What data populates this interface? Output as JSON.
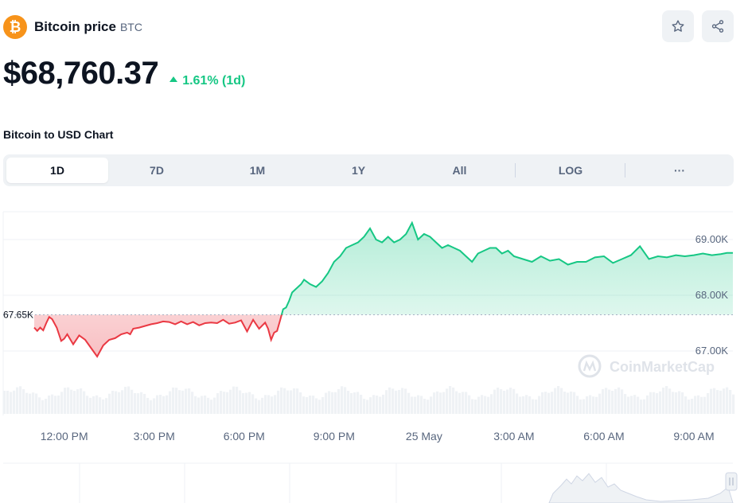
{
  "header": {
    "coin_name": "Bitcoin price",
    "coin_symbol": "BTC",
    "logo_glyph": "₿",
    "watchlist_icon": "star-icon",
    "share_icon": "share-icon"
  },
  "price": {
    "value": "$68,760.37",
    "change": "1.61% (1d)",
    "change_direction": "up"
  },
  "section_title": "Bitcoin to USD Chart",
  "tabs": [
    {
      "label": "1D",
      "active": true
    },
    {
      "label": "7D",
      "active": false
    },
    {
      "label": "1M",
      "active": false
    },
    {
      "label": "1Y",
      "active": false
    },
    {
      "label": "All",
      "active": false
    },
    {
      "label": "LOG",
      "active": false
    },
    {
      "label": "···",
      "active": false
    }
  ],
  "watermark": "CoinMarketCap",
  "colors": {
    "up": "#16c784",
    "down": "#ea3943",
    "brand": "#f7931a",
    "text": "#0d1421",
    "muted": "#58667e"
  },
  "chart_data": {
    "type": "line",
    "baseline": 67650,
    "baseline_label": "67.65K",
    "ylim": [
      66500,
      69500
    ],
    "yticks": [
      69000,
      68000,
      67000
    ],
    "ytick_labels": [
      "69.00K",
      "68.00K",
      "67.00K"
    ],
    "xticks": [
      1,
      4,
      7,
      10,
      13,
      16,
      19,
      22
    ],
    "xtick_labels": [
      "12:00 PM",
      "3:00 PM",
      "6:00 PM",
      "9:00 PM",
      "25 May",
      "3:00 AM",
      "6:00 AM",
      "9:00 AM"
    ],
    "x_unit": "hours since 11:00 AM, 24 May",
    "series": [
      {
        "x": [
          0,
          0.1,
          0.2,
          0.3,
          0.4,
          0.5,
          0.6,
          0.75,
          0.9,
          1.0,
          1.1,
          1.3,
          1.5,
          1.7,
          1.9,
          2.1,
          2.3,
          2.5,
          2.7,
          2.9,
          3.1,
          3.2,
          3.3,
          3.5,
          3.7,
          3.9,
          4.1,
          4.3,
          4.5,
          4.7,
          4.9,
          5.1,
          5.3,
          5.5,
          5.7,
          5.9,
          6.1,
          6.3,
          6.5,
          6.7,
          6.9,
          7.1,
          7.3,
          7.5,
          7.7,
          7.8,
          7.9,
          8.0,
          8.1,
          8.2,
          8.3,
          8.4,
          8.5,
          8.6,
          8.7,
          8.8,
          8.9,
          9.0,
          9.2,
          9.4,
          9.6,
          9.8,
          10.0,
          10.2,
          10.4,
          10.6,
          10.8,
          11.0,
          11.2,
          11.4,
          11.6,
          11.8,
          12.0,
          12.2,
          12.4,
          12.6,
          12.8,
          13.0,
          13.2,
          13.4,
          13.6,
          13.8,
          14.0,
          14.2,
          14.4,
          14.6,
          14.8,
          15.0,
          15.2,
          15.4,
          15.6,
          15.8,
          16.0,
          16.3,
          16.6,
          16.9,
          17.2,
          17.5,
          17.8,
          18.1,
          18.4,
          18.7,
          19.0,
          19.3,
          19.6,
          19.9,
          20.2,
          20.5,
          20.8,
          21.1,
          21.4,
          21.7,
          22.0,
          22.3,
          22.6,
          22.9,
          23.1,
          23.3
        ],
        "y": [
          67420,
          67360,
          67420,
          67370,
          67500,
          67610,
          67570,
          67420,
          67180,
          67220,
          67300,
          67120,
          67280,
          67200,
          67050,
          66900,
          67100,
          67200,
          67230,
          67300,
          67330,
          67300,
          67400,
          67420,
          67450,
          67480,
          67500,
          67530,
          67520,
          67480,
          67530,
          67480,
          67520,
          67460,
          67500,
          67510,
          67500,
          67560,
          67490,
          67510,
          67550,
          67350,
          67560,
          67400,
          67510,
          67400,
          67200,
          67330,
          67360,
          67550,
          67750,
          67780,
          67900,
          68050,
          68100,
          68150,
          68200,
          68280,
          68200,
          68150,
          68250,
          68400,
          68600,
          68700,
          68850,
          68900,
          68950,
          69050,
          69200,
          69000,
          68950,
          69050,
          68950,
          69000,
          69100,
          69300,
          69000,
          69100,
          69050,
          68950,
          68850,
          68900,
          68850,
          68800,
          68700,
          68600,
          68750,
          68800,
          68850,
          68850,
          68750,
          68800,
          68700,
          68650,
          68600,
          68700,
          68620,
          68650,
          68550,
          68600,
          68600,
          68680,
          68700,
          68580,
          68650,
          68720,
          68880,
          68650,
          68700,
          68680,
          68720,
          68700,
          68720,
          68750,
          68720,
          68740,
          68760,
          68760
        ]
      }
    ]
  }
}
